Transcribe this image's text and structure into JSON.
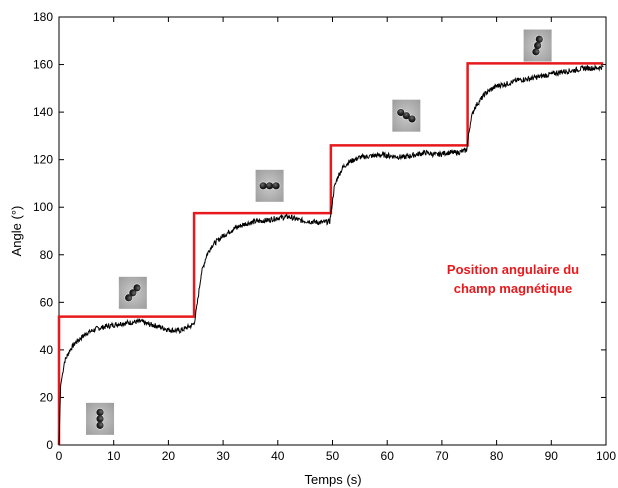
{
  "chart_data": {
    "type": "line",
    "xlabel": "Temps (s)",
    "ylabel": "Angle (°)",
    "xlim": [
      0,
      100
    ],
    "ylim": [
      0,
      180
    ],
    "x_ticks": [
      "0",
      "10",
      "20",
      "30",
      "40",
      "50",
      "60",
      "70",
      "80",
      "90",
      "100"
    ],
    "y_ticks": [
      "0",
      "20",
      "40",
      "60",
      "80",
      "100",
      "120",
      "140",
      "160",
      "180"
    ],
    "grid": false,
    "annotation": {
      "lines": [
        "Position angulaire du",
        "champ magnétique"
      ],
      "color": "#e8191c",
      "position_data": [
        83,
        72
      ]
    },
    "series": [
      {
        "color": "#e8191c",
        "style": "step",
        "x": [
          0,
          0,
          24.7,
          24.7,
          49.7,
          49.7,
          74.7,
          74.7,
          99.5
        ],
        "y": [
          0,
          54,
          54,
          97.5,
          97.5,
          126,
          126,
          160.5,
          160.5
        ]
      },
      {
        "color": "#000000",
        "style": "line",
        "x": [
          0,
          0.3,
          1,
          2,
          3,
          4,
          5,
          7,
          9,
          11,
          13,
          15,
          16,
          18,
          20,
          22,
          24,
          24.7,
          25.2,
          26,
          27,
          28,
          30,
          32,
          34,
          36,
          38,
          40,
          42,
          44,
          46,
          48,
          49.5,
          49.8,
          50.3,
          51,
          52,
          53,
          55,
          57,
          59,
          61,
          63,
          65,
          67,
          69,
          71,
          73,
          74.5,
          74.8,
          75.3,
          76,
          77,
          78,
          80,
          82,
          84,
          86,
          88,
          90,
          92,
          94,
          96,
          98,
          99.5
        ],
        "y": [
          0,
          25,
          35,
          40,
          43,
          45,
          47,
          49,
          50,
          51,
          51.5,
          52,
          51,
          50,
          48.5,
          48,
          50,
          51,
          58,
          72,
          80,
          84,
          88,
          91,
          93,
          94,
          94.5,
          95.5,
          96,
          94.5,
          94,
          93.5,
          94,
          99,
          108,
          113,
          117,
          119,
          121,
          121.5,
          122,
          121.5,
          121,
          122,
          123,
          122,
          123,
          123,
          124,
          129,
          137,
          142,
          145,
          148,
          151,
          152,
          153.5,
          154,
          155,
          156,
          157,
          157.5,
          158.5,
          158.5,
          159
        ]
      }
    ],
    "thumbnails": [
      {
        "x": 7.5,
        "y": 11,
        "rotation": 90
      },
      {
        "x": 13.5,
        "y": 64,
        "rotation": 130
      },
      {
        "x": 38.5,
        "y": 109,
        "rotation": 0
      },
      {
        "x": 63.5,
        "y": 138.5,
        "rotation": 30
      },
      {
        "x": 87.5,
        "y": 168,
        "rotation": 105
      }
    ]
  }
}
